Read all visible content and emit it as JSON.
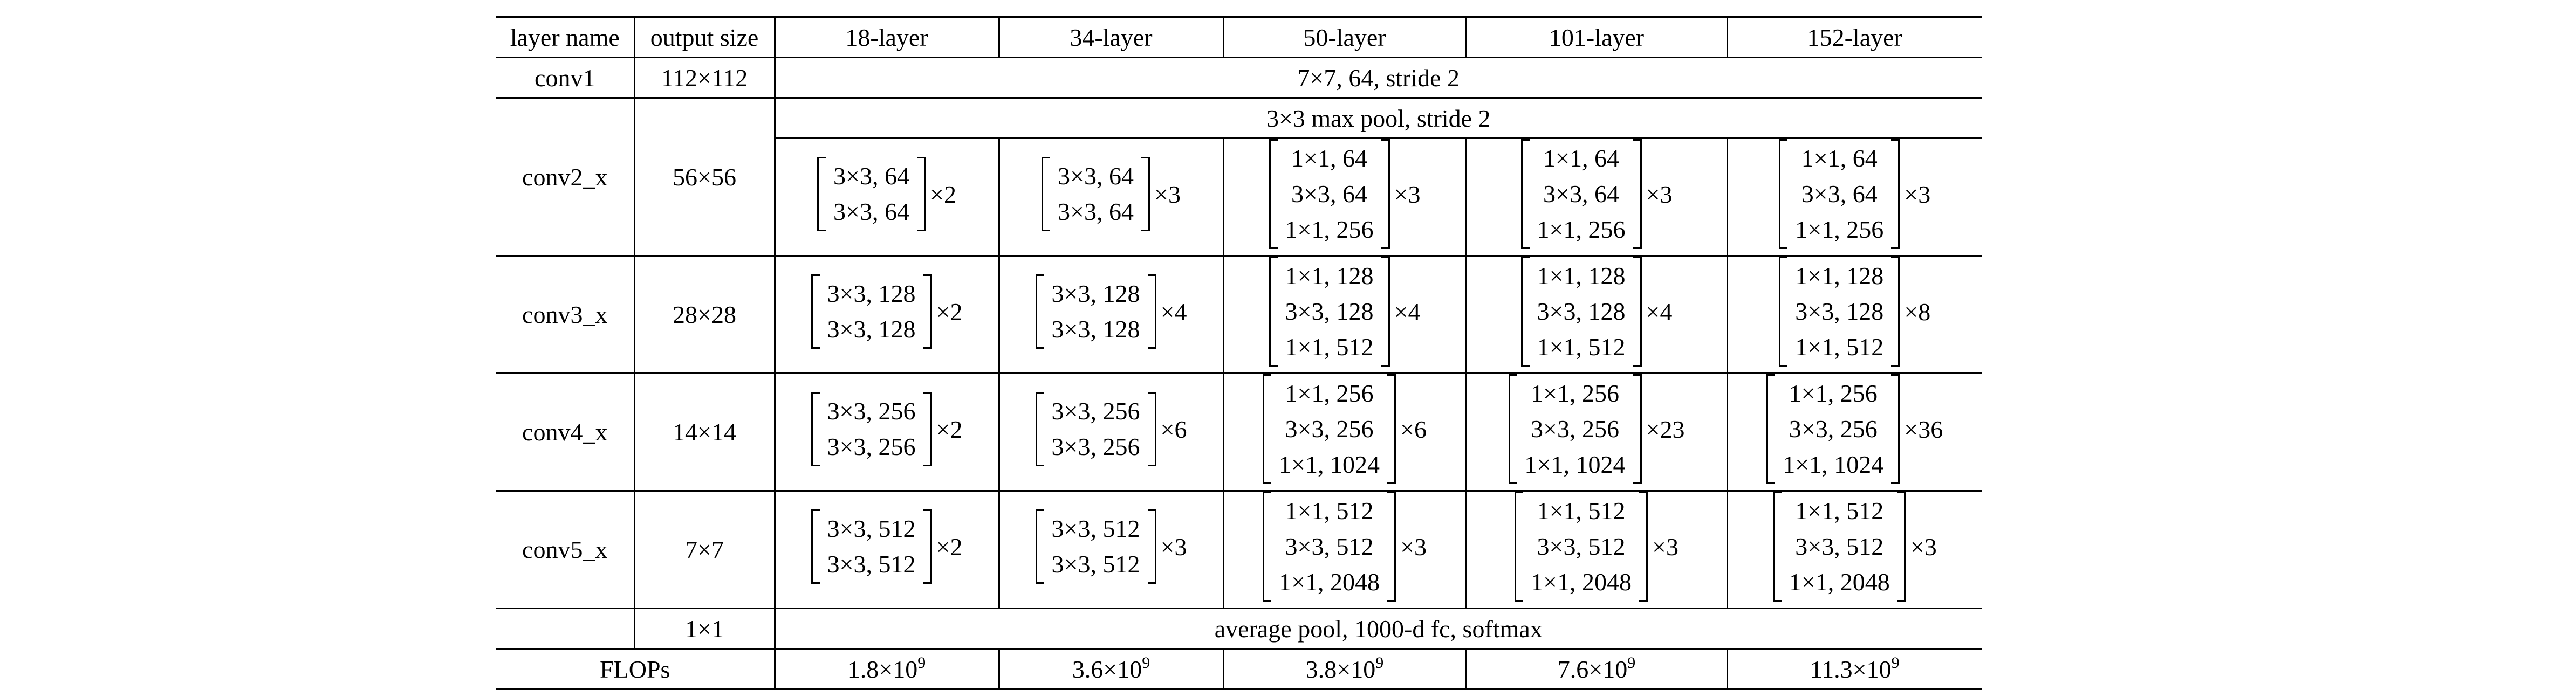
{
  "header": {
    "layer_name": "layer name",
    "output_size": "output size",
    "cols": [
      "18-layer",
      "34-layer",
      "50-layer",
      "101-layer",
      "152-layer"
    ]
  },
  "conv1": {
    "name": "conv1",
    "size": "112×112",
    "spec": "7×7, 64, stride 2"
  },
  "pool": {
    "spec": "3×3 max pool, stride 2"
  },
  "blocks": [
    {
      "name": "conv2_x",
      "size": "56×56",
      "cells": [
        {
          "lines": [
            "3×3, 64",
            "3×3, 64"
          ],
          "mult": "×2"
        },
        {
          "lines": [
            "3×3, 64",
            "3×3, 64"
          ],
          "mult": "×3"
        },
        {
          "lines": [
            "1×1, 64",
            "3×3, 64",
            "1×1, 256"
          ],
          "mult": "×3"
        },
        {
          "lines": [
            "1×1, 64",
            "3×3, 64",
            "1×1, 256"
          ],
          "mult": "×3"
        },
        {
          "lines": [
            "1×1, 64",
            "3×3, 64",
            "1×1, 256"
          ],
          "mult": "×3"
        }
      ]
    },
    {
      "name": "conv3_x",
      "size": "28×28",
      "cells": [
        {
          "lines": [
            "3×3, 128",
            "3×3, 128"
          ],
          "mult": "×2"
        },
        {
          "lines": [
            "3×3, 128",
            "3×3, 128"
          ],
          "mult": "×4"
        },
        {
          "lines": [
            "1×1, 128",
            "3×3, 128",
            "1×1, 512"
          ],
          "mult": "×4"
        },
        {
          "lines": [
            "1×1, 128",
            "3×3, 128",
            "1×1, 512"
          ],
          "mult": "×4"
        },
        {
          "lines": [
            "1×1, 128",
            "3×3, 128",
            "1×1, 512"
          ],
          "mult": "×8"
        }
      ]
    },
    {
      "name": "conv4_x",
      "size": "14×14",
      "cells": [
        {
          "lines": [
            "3×3, 256",
            "3×3, 256"
          ],
          "mult": "×2"
        },
        {
          "lines": [
            "3×3, 256",
            "3×3, 256"
          ],
          "mult": "×6"
        },
        {
          "lines": [
            "1×1, 256",
            "3×3, 256",
            "1×1, 1024"
          ],
          "mult": "×6"
        },
        {
          "lines": [
            "1×1, 256",
            "3×3, 256",
            "1×1, 1024"
          ],
          "mult": "×23"
        },
        {
          "lines": [
            "1×1, 256",
            "3×3, 256",
            "1×1, 1024"
          ],
          "mult": "×36"
        }
      ]
    },
    {
      "name": "conv5_x",
      "size": "7×7",
      "cells": [
        {
          "lines": [
            "3×3, 512",
            "3×3, 512"
          ],
          "mult": "×2"
        },
        {
          "lines": [
            "3×3, 512",
            "3×3, 512"
          ],
          "mult": "×3"
        },
        {
          "lines": [
            "1×1, 512",
            "3×3, 512",
            "1×1, 2048"
          ],
          "mult": "×3"
        },
        {
          "lines": [
            "1×1, 512",
            "3×3, 512",
            "1×1, 2048"
          ],
          "mult": "×3"
        },
        {
          "lines": [
            "1×1, 512",
            "3×3, 512",
            "1×1, 2048"
          ],
          "mult": "×3"
        }
      ]
    }
  ],
  "avgpool": {
    "size": "1×1",
    "spec": "average pool, 1000-d fc, softmax"
  },
  "flops": {
    "label": "FLOPs",
    "values": [
      {
        "mantissa": "1.8×10",
        "exp": "9"
      },
      {
        "mantissa": "3.6×10",
        "exp": "9"
      },
      {
        "mantissa": "3.8×10",
        "exp": "9"
      },
      {
        "mantissa": "7.6×10",
        "exp": "9"
      },
      {
        "mantissa": "11.3×10",
        "exp": "9"
      }
    ]
  }
}
